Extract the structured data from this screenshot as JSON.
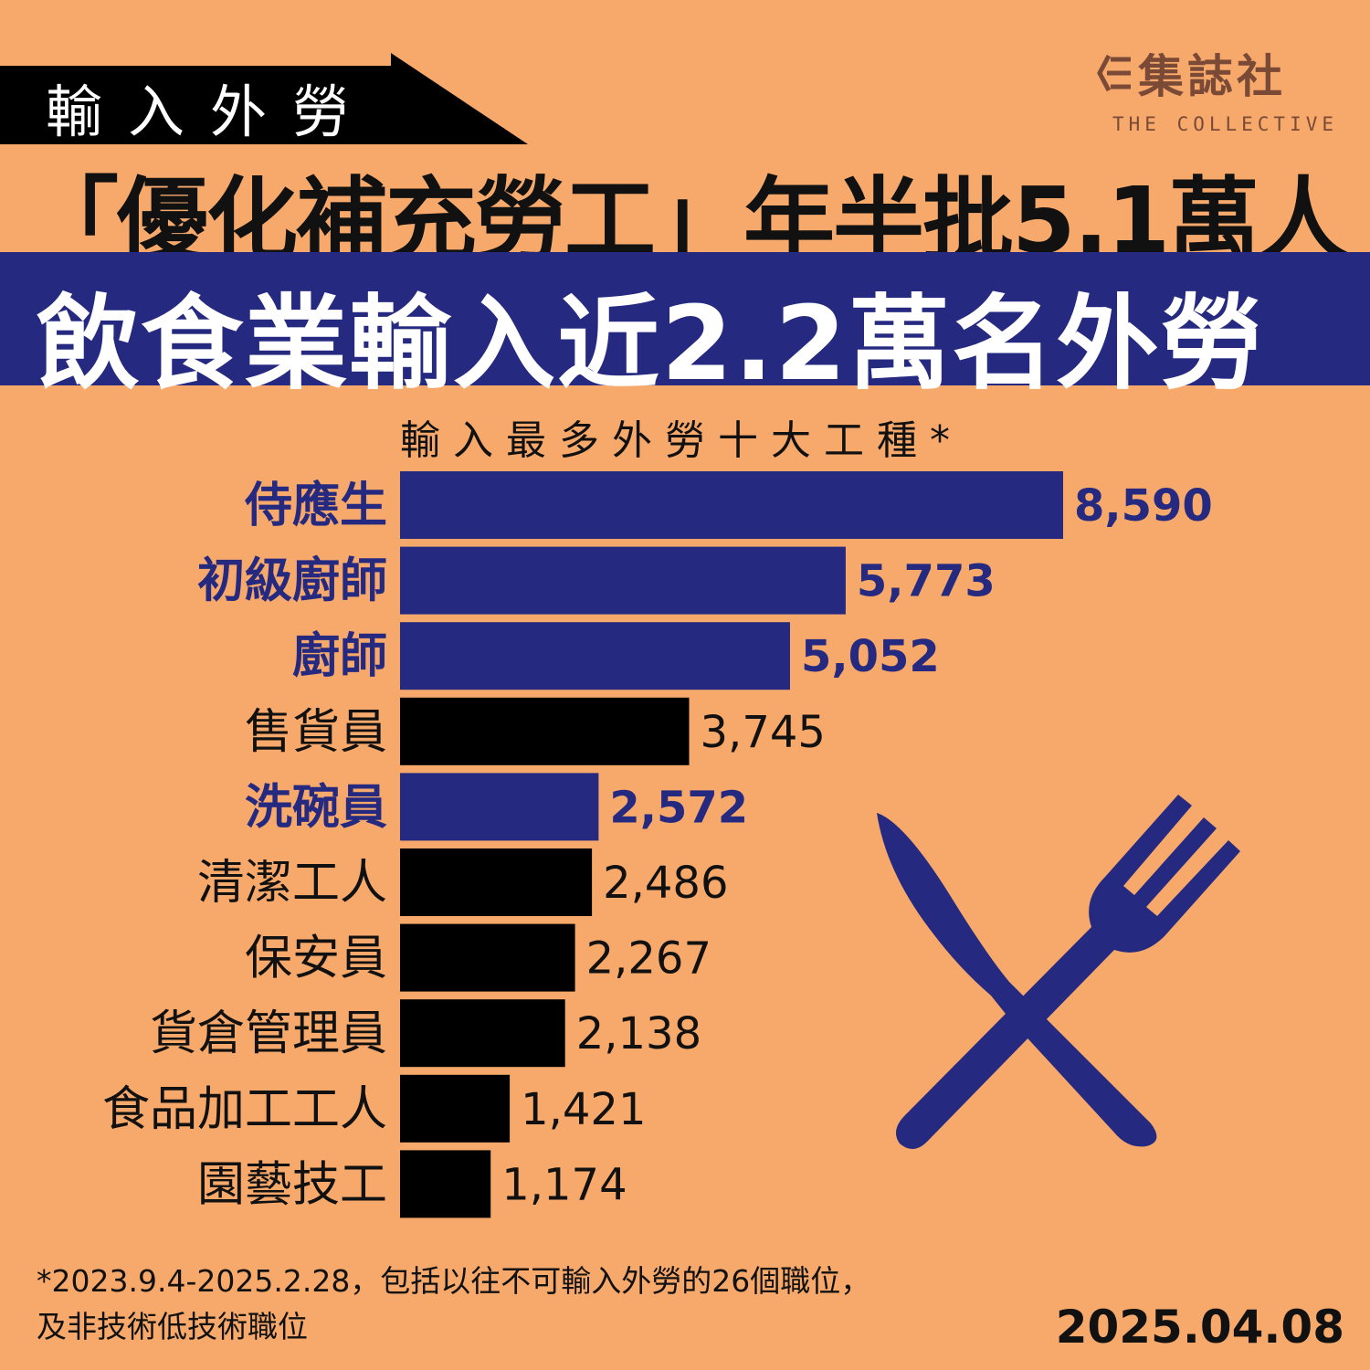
{
  "tag": "輸入外勞",
  "logo": {
    "name": "集誌社",
    "sub": "THE COLLECTIVE"
  },
  "headline1": "「優化補充勞工」年半批5.1萬人",
  "headline2": "飲食業輸入近2.2萬名外勞",
  "footnote": {
    "line1": "*2023.9.4-2025.2.28，包括以往不可輸入外勞的26個職位，",
    "line2": "及非技術低技術職位"
  },
  "date": "2025.04.08",
  "colors": {
    "background": "#F6A96B",
    "highlight": "#252A80",
    "other": "#000000"
  },
  "icons": [
    "knife-icon",
    "fork-icon",
    "logo-icon"
  ],
  "chart_data": {
    "type": "bar",
    "orientation": "horizontal",
    "title": "輸入最多外勞十大工種*",
    "categories": [
      "侍應生",
      "初級廚師",
      "廚師",
      "售貨員",
      "洗碗員",
      "清潔工人",
      "保安員",
      "貨倉管理員",
      "食品加工工人",
      "園藝技工"
    ],
    "values": [
      8590,
      5773,
      5052,
      3745,
      2572,
      2486,
      2267,
      2138,
      1421,
      1174
    ],
    "value_labels": [
      "8,590",
      "5,773",
      "5,052",
      "3,745",
      "2,572",
      "2,486",
      "2,267",
      "2,138",
      "1,421",
      "1,174"
    ],
    "highlighted": [
      true,
      true,
      true,
      false,
      true,
      false,
      false,
      false,
      false,
      false
    ],
    "xlim": [
      0,
      8590
    ],
    "grid": false,
    "legend": "none"
  }
}
